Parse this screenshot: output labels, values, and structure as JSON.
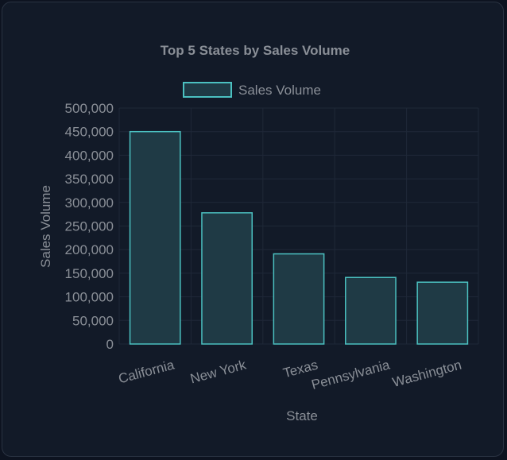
{
  "chart_data": {
    "type": "bar",
    "title": "Top 5 States by Sales Volume",
    "xlabel": "State",
    "ylabel": "Sales Volume",
    "categories": [
      "California",
      "New York",
      "Texas",
      "Pennsylvania",
      "Washington"
    ],
    "series": [
      {
        "name": "Sales Volume",
        "values": [
          450000,
          278000,
          191000,
          141000,
          131000
        ]
      }
    ],
    "ylim": [
      0,
      500000
    ],
    "yticks": [
      "0",
      "50,000",
      "100,000",
      "150,000",
      "200,000",
      "250,000",
      "300,000",
      "350,000",
      "400,000",
      "450,000",
      "500,000"
    ],
    "grid": true,
    "legend_position": "top",
    "colors": {
      "bar_fill": "#1f3a45",
      "bar_stroke": "#4bc0c0",
      "text": "#8a8f97",
      "background": "#121a28"
    }
  }
}
